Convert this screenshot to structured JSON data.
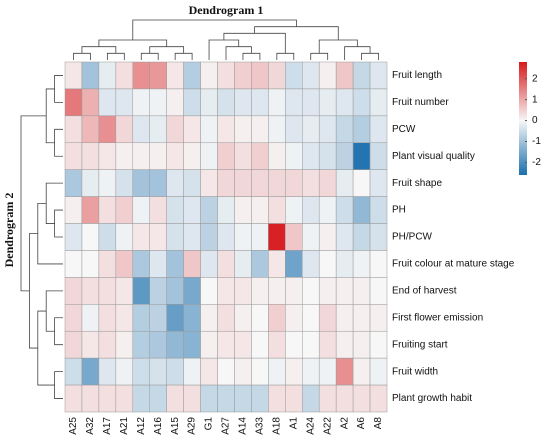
{
  "chart_data": {
    "type": "heatmap",
    "title": "Dendrogram 1",
    "y_title": "Dendrogram 2",
    "x": [
      "A25",
      "A32",
      "A17",
      "A21",
      "A12",
      "A16",
      "A15",
      "A29",
      "G1",
      "A27",
      "A14",
      "A33",
      "A18",
      "A1",
      "A24",
      "A22",
      "A2",
      "A6",
      "A8"
    ],
    "y": [
      "Fruit length",
      "Fruit number",
      "PCW",
      "Plant visual quality",
      "Fruit shape",
      "PH",
      "PH/PCW",
      "Fruit colour at mature stage",
      "End of harvest",
      "First flower emission",
      "Fruiting start",
      "Fruit width",
      "Plant growth habit"
    ],
    "z": [
      [
        0.2,
        -1.0,
        -0.2,
        0.3,
        1.3,
        1.2,
        0.2,
        -0.8,
        0.1,
        0.3,
        0.5,
        0.6,
        0.4,
        -0.5,
        -0.3,
        0.1,
        0.6,
        -0.6,
        -0.3
      ],
      [
        1.6,
        0.9,
        -0.3,
        -0.3,
        -0.1,
        -0.1,
        0.1,
        -0.5,
        -0.2,
        -0.4,
        -0.3,
        -0.3,
        -0.1,
        -0.3,
        -0.3,
        -0.2,
        -0.3,
        -0.5,
        -0.2
      ],
      [
        0.3,
        0.8,
        1.3,
        0.4,
        -0.3,
        -0.2,
        0.4,
        0.2,
        -0.1,
        0.2,
        0.1,
        0.1,
        -0.1,
        -0.3,
        -0.2,
        -0.3,
        -0.6,
        -0.8,
        -0.3
      ],
      [
        0.3,
        0.3,
        0.2,
        0.1,
        0.1,
        0.1,
        0.2,
        0.1,
        -0.1,
        0.5,
        0.3,
        0.5,
        0.1,
        -0.1,
        -0.3,
        -0.4,
        -0.7,
        -2.5,
        -0.5
      ],
      [
        -0.9,
        -0.2,
        -0.1,
        -0.4,
        -1.0,
        -1.0,
        -0.3,
        -0.4,
        0.2,
        0.4,
        0.4,
        0.4,
        0.4,
        0.4,
        0.3,
        0.4,
        -0.2,
        0.0,
        -0.3
      ],
      [
        0.1,
        1.1,
        0.3,
        0.5,
        -0.1,
        0.3,
        -0.4,
        -0.3,
        -0.7,
        -0.2,
        0.1,
        0.1,
        0.3,
        -0.1,
        -0.3,
        -0.1,
        -0.5,
        -1.2,
        -0.5
      ],
      [
        -0.3,
        0.0,
        -0.5,
        -0.1,
        0.2,
        0.2,
        -0.4,
        -0.3,
        -0.7,
        -0.3,
        -0.1,
        -0.1,
        2.7,
        0.6,
        -0.1,
        0.1,
        -0.3,
        -0.6,
        -0.4
      ],
      [
        0.0,
        0.0,
        0.3,
        0.6,
        -0.9,
        -0.3,
        -1.0,
        0.6,
        -0.3,
        0.3,
        -0.2,
        -0.9,
        0.2,
        -1.6,
        -0.3,
        0.0,
        -0.2,
        -0.1,
        0.0
      ],
      [
        0.4,
        0.3,
        0.3,
        0.2,
        -1.8,
        -0.7,
        -1.0,
        -1.5,
        0.0,
        0.2,
        0.2,
        0.1,
        0.1,
        0.1,
        0.0,
        0.1,
        0.1,
        0.1,
        0.0
      ],
      [
        0.4,
        -0.1,
        0.3,
        0.2,
        -0.8,
        -0.7,
        -1.7,
        -1.3,
        0.1,
        0.3,
        0.1,
        0.0,
        0.5,
        0.1,
        0.0,
        0.4,
        0.1,
        0.1,
        0.1
      ],
      [
        0.4,
        0.2,
        0.3,
        0.1,
        -0.8,
        -0.9,
        -1.2,
        -1.3,
        0.1,
        0.2,
        0.2,
        0.0,
        0.3,
        0.0,
        0.0,
        0.3,
        0.1,
        0.1,
        0.0
      ],
      [
        -0.5,
        -1.5,
        -0.3,
        -0.1,
        -0.5,
        -0.4,
        -0.5,
        -0.1,
        0.2,
        0.0,
        0.1,
        0.0,
        -0.1,
        0.1,
        -0.1,
        -0.1,
        1.3,
        0.1,
        -0.1
      ],
      [
        0.3,
        0.3,
        0.3,
        0.3,
        -0.6,
        -0.6,
        0.3,
        0.3,
        -0.6,
        -0.6,
        -0.6,
        -0.6,
        0.3,
        0.3,
        -0.6,
        0.3,
        0.3,
        0.3,
        0.3
      ]
    ],
    "zlim": [
      -2.6,
      2.8
    ],
    "zticks": [
      2,
      1,
      0,
      -1,
      -2
    ],
    "colors": [
      "#1a6fae",
      "#f7f7f7",
      "#d7191c"
    ]
  }
}
